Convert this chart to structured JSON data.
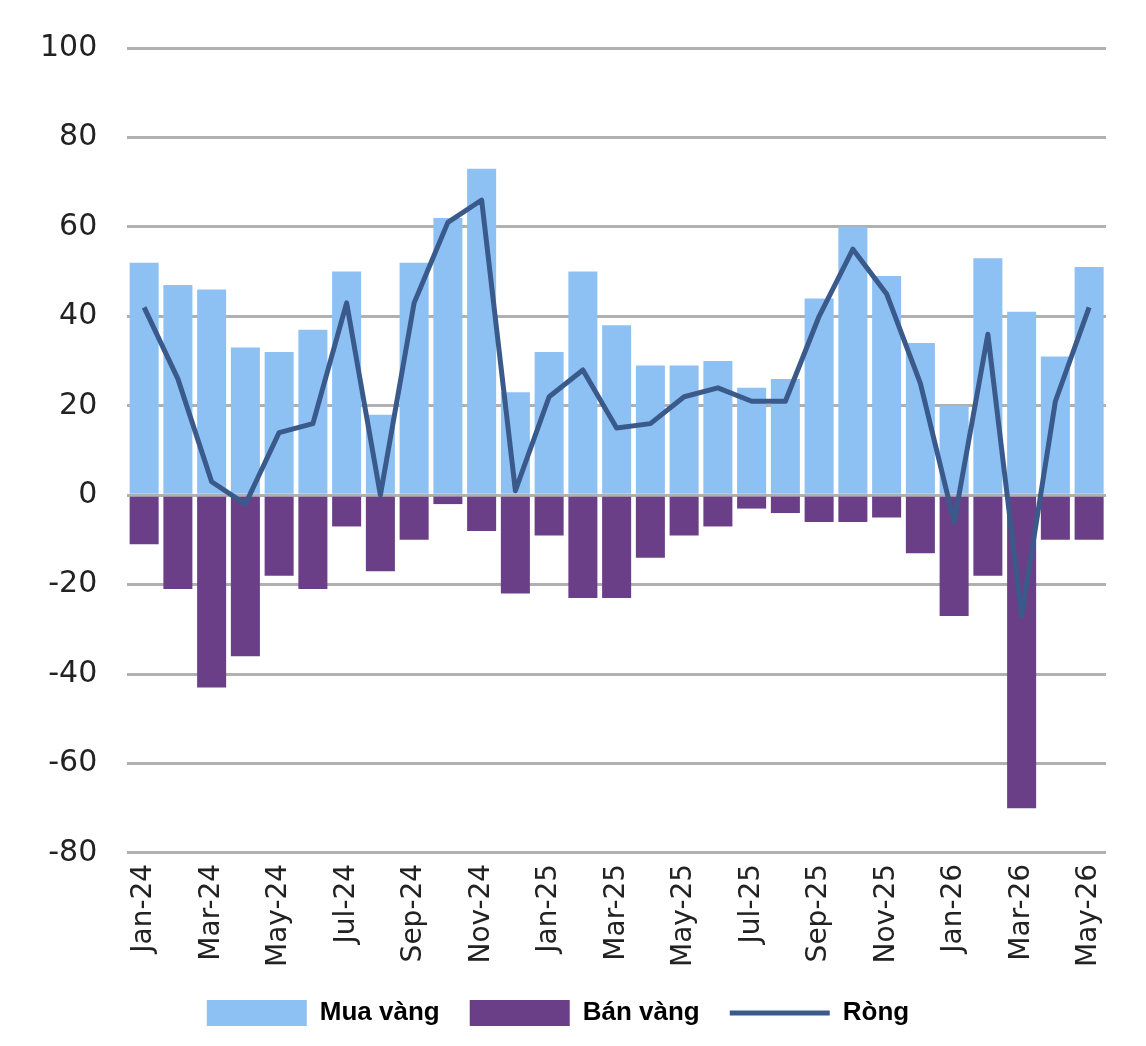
{
  "chart_data": {
    "type": "bar",
    "stacked": true,
    "categories": [
      "Jan-24",
      null,
      "Mar-24",
      null,
      "May-24",
      null,
      "Jul-24",
      null,
      "Sep-24",
      null,
      "Nov-24",
      null,
      "Jan-25",
      null,
      "Mar-25",
      null,
      "May-25",
      null,
      "Jul-25",
      null,
      "Sep-25",
      null,
      "Nov-25",
      null,
      "Jan-26",
      null,
      "Mar-26",
      null,
      "May-26"
    ],
    "series": [
      {
        "name": "Mua vàng",
        "color": "#8ec1f3",
        "values": [
          52,
          47,
          46,
          33,
          32,
          37,
          50,
          18,
          52,
          62,
          73,
          23,
          32,
          50,
          38,
          29,
          29,
          30,
          24,
          26,
          44,
          60,
          49,
          34,
          20,
          53,
          41,
          31,
          51
        ]
      },
      {
        "name": "Bán vàng",
        "color": "#6b3f87",
        "values": [
          -11,
          -21,
          -43,
          -36,
          -18,
          -21,
          -7,
          -17,
          -10,
          -2,
          -8,
          -22,
          -9,
          -23,
          -23,
          -14,
          -9,
          -7,
          -3,
          -4,
          -6,
          -6,
          -5,
          -13,
          -27,
          -18,
          -70,
          -10,
          -10
        ]
      },
      {
        "name": "Ròng",
        "type": "line",
        "color": "#3b5a8c",
        "values": [
          42,
          26,
          3,
          -2,
          14,
          16,
          43,
          0,
          43,
          61,
          66,
          1,
          22,
          28,
          15,
          16,
          22,
          24,
          21,
          21,
          40,
          55,
          45,
          25,
          -6,
          36,
          -27,
          21,
          42
        ]
      }
    ],
    "ylim": [
      -80,
      100
    ],
    "yticks": [
      -80,
      -60,
      -40,
      -20,
      0,
      20,
      40,
      60,
      80,
      100
    ],
    "grid": "y",
    "legend": "bottom",
    "marker": "none",
    "line_style": "solid"
  }
}
